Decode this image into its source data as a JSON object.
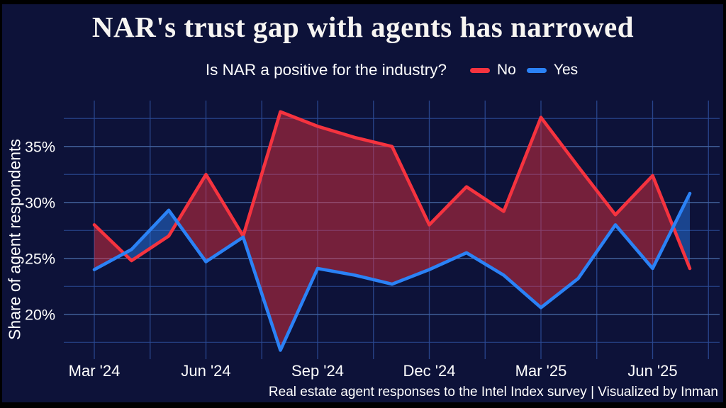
{
  "title": "NAR's trust gap with agents has narrowed",
  "subtitle": "Is NAR a positive for the industry?",
  "legend": {
    "items": [
      {
        "label": "No",
        "color": "#f5333f"
      },
      {
        "label": "Yes",
        "color": "#2b82f6"
      }
    ]
  },
  "y_axis_title": "Share of agent respondents",
  "footer": "Real estate agent responses to the Intel Index survey | Visualized by Inman",
  "colors": {
    "background": "#0d1239",
    "frame": "#000000",
    "grid_major": "#44649f",
    "grid_minor": "#2b4a94",
    "no_line": "#f5333f",
    "yes_line": "#2b82f6",
    "text": "#ffffff"
  },
  "chart_data": {
    "type": "line",
    "title": "NAR's trust gap with agents has narrowed",
    "subtitle": "Is NAR a positive for the industry?",
    "ylabel": "Share of agent respondents",
    "x": [
      "Mar '24",
      "Apr '24",
      "May '24",
      "Jun '24",
      "Jul '24",
      "Aug '24",
      "Sep '24",
      "Oct '24",
      "Nov '24",
      "Dec '24",
      "Jan '25",
      "Feb '25",
      "Mar '25",
      "Apr '25",
      "May '25",
      "Jun '25",
      "Jul '25"
    ],
    "x_labeled_ticks": [
      "Mar '24",
      "Jun '24",
      "Sep '24",
      "Dec '24",
      "Mar '25",
      "Jun '25"
    ],
    "series": [
      {
        "name": "No",
        "color": "#f5333f",
        "values": [
          28.0,
          24.8,
          27.0,
          32.5,
          27.0,
          38.1,
          36.8,
          35.8,
          35.0,
          28.0,
          31.4,
          29.2,
          37.6,
          33.2,
          28.9,
          32.4,
          24.1
        ]
      },
      {
        "name": "Yes",
        "color": "#2b82f6",
        "values": [
          24.0,
          25.8,
          29.3,
          24.7,
          26.9,
          16.8,
          24.1,
          23.5,
          22.7,
          24.0,
          25.5,
          23.5,
          20.6,
          23.2,
          28.0,
          24.1,
          30.8
        ]
      }
    ],
    "fill_between": {
      "enabled": true,
      "opacity": 0.45
    },
    "y_gridlines": [
      17.5,
      20,
      22.5,
      25,
      27.5,
      30,
      32.5,
      35,
      37.5
    ],
    "y_ticks_labeled": [
      20,
      25,
      30,
      35
    ],
    "y_tick_suffix": "%",
    "ylim": [
      16.0,
      39.1
    ],
    "grid": true,
    "legend_position": "top"
  }
}
